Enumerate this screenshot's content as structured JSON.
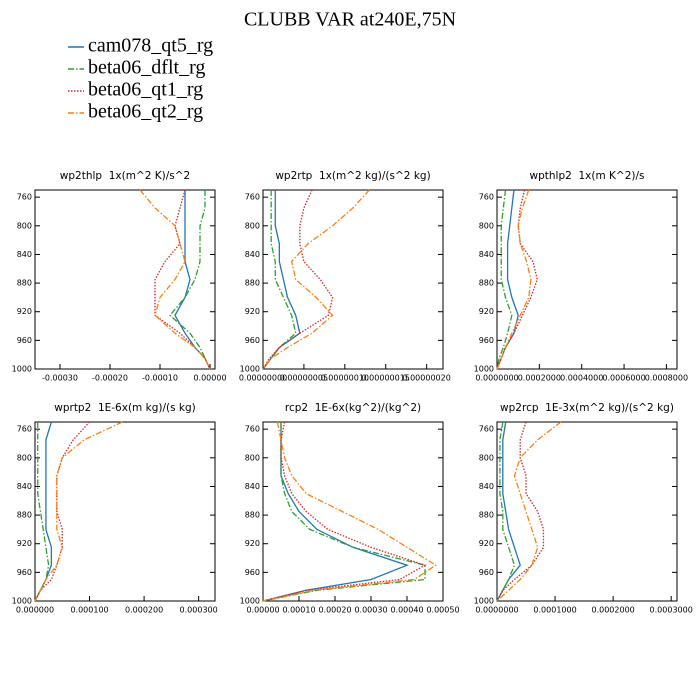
{
  "title": "CLUBB VAR at240E,75N",
  "legend": [
    {
      "name": "cam078_qt5_rg",
      "color": "#1f77b4",
      "dash": "solid"
    },
    {
      "name": "beta06_dflt_rg",
      "color": "#2ca02c",
      "dash": "dashdot"
    },
    {
      "name": "beta06_qt1_rg",
      "color": "#d62728",
      "dash": "dot"
    },
    {
      "name": "beta06_qt2_rg",
      "color": "#ff7f0e",
      "dash": "dashdot"
    }
  ],
  "chart_data": [
    {
      "type": "line",
      "title": "wp2thlp  1x(m^2 K)/s^2",
      "xlim": [
        -0.00035,
        1e-05
      ],
      "xticks": [
        {
          "value": -0.0003,
          "label": "-0.00030"
        },
        {
          "value": -0.0002,
          "label": "-0.00020"
        },
        {
          "value": -0.0001,
          "label": "-0.00010"
        },
        {
          "value": 0,
          "label": "0.00000"
        }
      ],
      "ylim": [
        750,
        1000
      ],
      "y_inverted": true,
      "yticks": [
        760,
        800,
        840,
        880,
        920,
        960,
        1000
      ],
      "y": [
        750,
        775,
        800,
        825,
        850,
        875,
        900,
        925,
        950,
        970,
        985,
        1000
      ],
      "series": [
        {
          "values": [
            -5e-05,
            -5e-05,
            -5e-05,
            -5e-05,
            -5e-05,
            -4e-05,
            -5e-05,
            -7e-05,
            -5e-05,
            -3e-05,
            -1e-05,
            0
          ]
        },
        {
          "values": [
            -1e-05,
            -1e-05,
            -2e-05,
            -2e-05,
            -2e-05,
            -3e-05,
            -5e-05,
            -8e-05,
            -4e-05,
            -2e-05,
            -1e-05,
            0
          ]
        },
        {
          "values": [
            -5e-05,
            -6e-05,
            -7e-05,
            -6e-05,
            -9e-05,
            -0.00011,
            -0.00011,
            -0.00011,
            -6e-05,
            -3e-05,
            -1e-05,
            0
          ]
        },
        {
          "values": [
            -0.00014,
            -0.00011,
            -7e-05,
            -6e-05,
            -5e-05,
            -7e-05,
            -0.0001,
            -0.00011,
            -7e-05,
            -3e-05,
            -1e-05,
            0
          ]
        }
      ]
    },
    {
      "type": "line",
      "title": "wp2rtp  1x(m^2 kg)/(s^2 kg)",
      "xlim": [
        0,
        2.2e-07
      ],
      "xticks": [
        {
          "value": 0,
          "label": "0.00000000"
        },
        {
          "value": 5e-08,
          "label": "0.00000005"
        },
        {
          "value": 1e-07,
          "label": "0.00000010"
        },
        {
          "value": 1.5e-07,
          "label": "0.00000015"
        },
        {
          "value": 2e-07,
          "label": "0.00000020"
        }
      ],
      "ylim": [
        750,
        1000
      ],
      "y_inverted": true,
      "yticks": [
        760,
        800,
        840,
        880,
        920,
        960,
        1000
      ],
      "y": [
        750,
        775,
        800,
        825,
        850,
        875,
        900,
        925,
        950,
        970,
        985,
        1000
      ],
      "series": [
        {
          "values": [
            1.5e-08,
            1.5e-08,
            1.5e-08,
            2e-08,
            2e-08,
            2.5e-08,
            3e-08,
            4e-08,
            4.5e-08,
            2e-08,
            1e-08,
            0
          ]
        },
        {
          "values": [
            1e-08,
            1e-08,
            1e-08,
            1e-08,
            1.5e-08,
            1.5e-08,
            2.5e-08,
            3.5e-08,
            4e-08,
            2e-08,
            1e-08,
            0
          ]
        },
        {
          "values": [
            6e-08,
            5e-08,
            4.5e-08,
            4.5e-08,
            5e-08,
            7e-08,
            8.5e-08,
            8e-08,
            4.5e-08,
            2e-08,
            8e-09,
            0
          ]
        },
        {
          "values": [
            1.3e-07,
            1.1e-07,
            8.5e-08,
            5.5e-08,
            3.5e-08,
            4e-08,
            6.5e-08,
            8.5e-08,
            6e-08,
            3e-08,
            1e-08,
            0
          ]
        }
      ]
    },
    {
      "type": "line",
      "title": "wpthlp2  1x(m K^2)/s",
      "xlim": [
        0,
        0.00085
      ],
      "xticks": [
        {
          "value": 0,
          "label": "0.0000000"
        },
        {
          "value": 0.0002,
          "label": "0.0002000"
        },
        {
          "value": 0.0004,
          "label": "0.0004000"
        },
        {
          "value": 0.0006,
          "label": "0.0006000"
        },
        {
          "value": 0.0008,
          "label": "0.0008000"
        }
      ],
      "ylim": [
        750,
        1000
      ],
      "y_inverted": true,
      "yticks": [
        760,
        800,
        840,
        880,
        920,
        960,
        1000
      ],
      "y": [
        750,
        775,
        800,
        825,
        850,
        875,
        900,
        925,
        950,
        970,
        985,
        1000
      ],
      "series": [
        {
          "values": [
            8e-05,
            7e-05,
            6e-05,
            5e-05,
            5e-05,
            5e-05,
            7e-05,
            0.0001,
            8e-05,
            4e-05,
            2e-05,
            0
          ]
        },
        {
          "values": [
            4e-05,
            3e-05,
            2e-05,
            2e-05,
            2e-05,
            2e-05,
            4e-05,
            7e-05,
            5e-05,
            3e-05,
            1e-05,
            0
          ]
        },
        {
          "values": [
            0.00013,
            0.00011,
            0.0001,
            0.00011,
            0.00017,
            0.00019,
            0.00016,
            0.00012,
            8e-05,
            4e-05,
            2e-05,
            0
          ]
        },
        {
          "values": [
            0.00015,
            0.00012,
            0.0001,
            0.00011,
            0.00014,
            0.00016,
            0.00015,
            0.00011,
            7e-05,
            4e-05,
            2e-05,
            0
          ]
        }
      ]
    },
    {
      "type": "line",
      "title": "wprtp2  1E-6x(m kg)/(s kg)",
      "xlim": [
        0,
        0.00033
      ],
      "xticks": [
        {
          "value": 0,
          "label": "0.000000"
        },
        {
          "value": 0.0001,
          "label": "0.000100"
        },
        {
          "value": 0.0002,
          "label": "0.000200"
        },
        {
          "value": 0.0003,
          "label": "0.000300"
        }
      ],
      "ylim": [
        750,
        1000
      ],
      "y_inverted": true,
      "yticks": [
        760,
        800,
        840,
        880,
        920,
        960,
        1000
      ],
      "y": [
        750,
        775,
        800,
        825,
        850,
        875,
        900,
        925,
        950,
        970,
        985,
        1000
      ],
      "series": [
        {
          "values": [
            3e-05,
            2e-05,
            2e-05,
            2e-05,
            2e-05,
            2e-05,
            2e-05,
            3e-05,
            3e-05,
            2e-05,
            1e-05,
            0
          ]
        },
        {
          "values": [
            5e-06,
            5e-06,
            5e-06,
            5e-06,
            5e-06,
            1e-05,
            1.5e-05,
            2e-05,
            2.5e-05,
            2e-05,
            1e-05,
            0
          ]
        },
        {
          "values": [
            0.0001,
            7e-05,
            5e-05,
            4e-05,
            4e-05,
            4e-05,
            5e-05,
            5e-05,
            4e-05,
            3e-05,
            1e-05,
            0
          ]
        },
        {
          "values": [
            0.00016,
            9e-05,
            5e-05,
            4e-05,
            4e-05,
            4e-05,
            4e-05,
            5e-05,
            4e-05,
            2e-05,
            1e-05,
            0
          ]
        }
      ]
    },
    {
      "type": "line",
      "title": "rcp2  1E-6x(kg^2)/(kg^2)",
      "xlim": [
        0,
        0.0005
      ],
      "xticks": [
        {
          "value": 0,
          "label": "0.00000"
        },
        {
          "value": 0.0001,
          "label": "0.00010"
        },
        {
          "value": 0.0002,
          "label": "0.00020"
        },
        {
          "value": 0.0003,
          "label": "0.00030"
        },
        {
          "value": 0.0004,
          "label": "0.00040"
        },
        {
          "value": 0.0005,
          "label": "0.00050"
        }
      ],
      "ylim": [
        750,
        1000
      ],
      "y_inverted": true,
      "yticks": [
        760,
        800,
        840,
        880,
        920,
        960,
        1000
      ],
      "y": [
        750,
        775,
        800,
        825,
        850,
        875,
        900,
        925,
        950,
        970,
        985,
        1000
      ],
      "series": [
        {
          "values": [
            5e-05,
            5e-05,
            5e-05,
            5e-05,
            7e-05,
            0.0001,
            0.00015,
            0.00025,
            0.0004,
            0.0003,
            0.00012,
            0
          ]
        },
        {
          "values": [
            5e-05,
            5e-05,
            5e-05,
            5e-05,
            6e-05,
            8e-05,
            0.00013,
            0.00025,
            0.00045,
            0.00045,
            0.00015,
            0
          ]
        },
        {
          "values": [
            6e-05,
            5e-05,
            5e-05,
            6e-05,
            8e-05,
            0.00012,
            0.00018,
            0.0003,
            0.00045,
            0.00038,
            0.00012,
            0
          ]
        },
        {
          "values": [
            4e-05,
            5e-05,
            6e-05,
            8e-05,
            0.00012,
            0.00022,
            0.00032,
            0.0004,
            0.00048,
            0.00042,
            0.00014,
            0
          ]
        }
      ]
    },
    {
      "type": "line",
      "title": "wp2rcp  1E-3x(m^2 kg)/(s^2 kg)",
      "xlim": [
        0,
        0.00031
      ],
      "xticks": [
        {
          "value": 0,
          "label": "0.0000000"
        },
        {
          "value": 0.0001,
          "label": "0.0001000"
        },
        {
          "value": 0.0002,
          "label": "0.0002000"
        },
        {
          "value": 0.0003,
          "label": "0.0003000"
        }
      ],
      "ylim": [
        750,
        1000
      ],
      "y_inverted": true,
      "yticks": [
        760,
        800,
        840,
        880,
        920,
        960,
        1000
      ],
      "y": [
        750,
        775,
        800,
        825,
        850,
        875,
        900,
        925,
        950,
        970,
        985,
        1000
      ],
      "series": [
        {
          "values": [
            1.5e-05,
            1e-05,
            1e-05,
            1e-05,
            1e-05,
            1.5e-05,
            2e-05,
            3e-05,
            4e-05,
            2e-05,
            1e-05,
            0
          ]
        },
        {
          "values": [
            1e-05,
            5e-06,
            5e-06,
            5e-06,
            5e-06,
            1e-05,
            1e-05,
            2e-05,
            3e-05,
            2e-05,
            1e-05,
            0
          ]
        },
        {
          "values": [
            5e-05,
            4e-05,
            4e-05,
            5e-05,
            5e-05,
            7e-05,
            8e-05,
            8e-05,
            6e-05,
            3e-05,
            1e-05,
            0
          ]
        },
        {
          "values": [
            0.00011,
            7e-05,
            4e-05,
            3e-05,
            4e-05,
            5e-05,
            6e-05,
            7e-05,
            6e-05,
            4e-05,
            2e-05,
            0
          ]
        }
      ]
    }
  ]
}
